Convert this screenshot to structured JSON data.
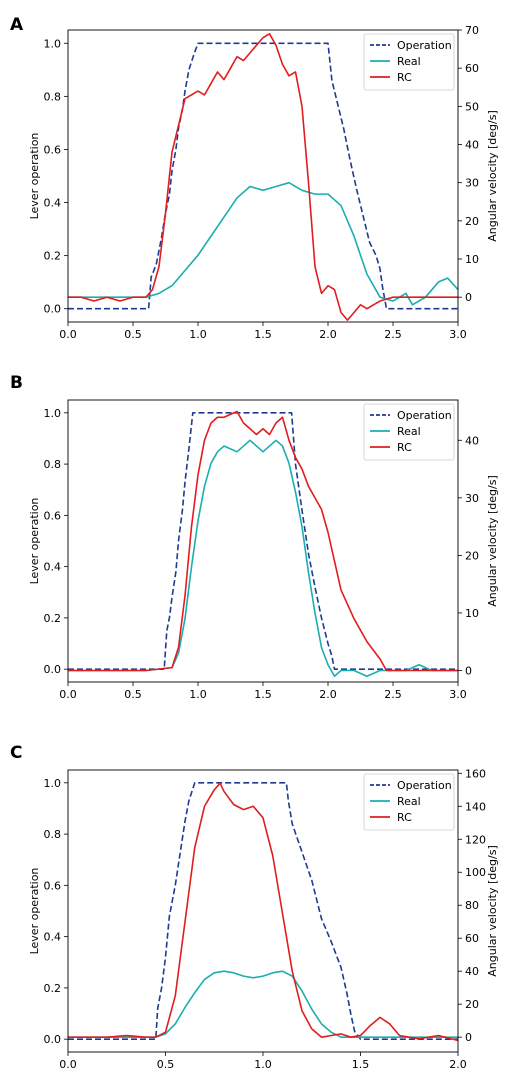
{
  "colors": {
    "operation": "#1f3a93",
    "real": "#1aaeb0",
    "rc": "#e11d1d"
  },
  "chart_data": [
    {
      "type": "line",
      "panel": "A",
      "xlabel": "",
      "ylabel": "Lever operation",
      "y2label": "Angular velocity [deg/s]",
      "xlim": [
        0,
        3
      ],
      "ylim": [
        -0.05,
        1.05
      ],
      "y2lim": [
        -6.5,
        70
      ],
      "xticks": [
        "0.0",
        "0.5",
        "1.0",
        "1.5",
        "2.0",
        "2.5",
        "3.0"
      ],
      "yticks": [
        "0.0",
        "0.2",
        "0.4",
        "0.6",
        "0.8",
        "1.0"
      ],
      "y2ticks": [
        "0",
        "10",
        "20",
        "30",
        "40",
        "50",
        "60",
        "70"
      ],
      "legend": {
        "position": "top-right",
        "entries": [
          "Operation",
          "Real",
          "RC"
        ]
      },
      "series": [
        {
          "name": "Operation",
          "axis": "left",
          "style": "dashed",
          "x": [
            0,
            0.62,
            0.64,
            0.65,
            0.68,
            0.7,
            0.72,
            0.75,
            0.78,
            0.8,
            0.83,
            0.85,
            0.88,
            0.9,
            0.93,
            0.97,
            1.0,
            2.0,
            2.03,
            2.08,
            2.12,
            2.17,
            2.22,
            2.27,
            2.32,
            2.37,
            2.4,
            2.42,
            2.45,
            3.0
          ],
          "y": [
            0,
            0,
            0.12,
            0.13,
            0.17,
            0.22,
            0.27,
            0.36,
            0.43,
            0.52,
            0.6,
            0.68,
            0.75,
            0.82,
            0.9,
            0.96,
            1.0,
            1.0,
            0.86,
            0.76,
            0.68,
            0.56,
            0.45,
            0.35,
            0.25,
            0.2,
            0.15,
            0.08,
            0,
            0
          ]
        },
        {
          "name": "Real",
          "axis": "right",
          "x": [
            0,
            0.3,
            0.6,
            0.7,
            0.8,
            0.9,
            1.0,
            1.1,
            1.2,
            1.3,
            1.4,
            1.5,
            1.6,
            1.7,
            1.8,
            1.9,
            2.0,
            2.1,
            2.2,
            2.3,
            2.4,
            2.5,
            2.6,
            2.65,
            2.75,
            2.85,
            2.92,
            3.0
          ],
          "y": [
            0,
            0,
            0,
            1,
            3,
            7,
            11,
            16,
            21,
            26,
            29,
            28,
            29,
            30,
            28,
            27,
            27,
            24,
            16,
            6,
            0,
            -1,
            1,
            -2,
            0,
            4,
            5,
            2
          ]
        },
        {
          "name": "RC",
          "axis": "right",
          "x": [
            0,
            0.1,
            0.2,
            0.3,
            0.4,
            0.5,
            0.6,
            0.65,
            0.7,
            0.75,
            0.8,
            0.85,
            0.9,
            1.0,
            1.05,
            1.1,
            1.15,
            1.2,
            1.25,
            1.3,
            1.35,
            1.4,
            1.45,
            1.5,
            1.55,
            1.6,
            1.65,
            1.7,
            1.75,
            1.8,
            1.85,
            1.9,
            1.95,
            2.0,
            2.05,
            2.1,
            2.15,
            2.2,
            2.25,
            2.3,
            2.35,
            2.4,
            2.5,
            2.6,
            2.8,
            3.0
          ],
          "y": [
            0,
            0,
            -1,
            0,
            -1,
            0,
            0,
            2,
            8,
            22,
            38,
            45,
            52,
            54,
            53,
            56,
            59,
            57,
            60,
            63,
            62,
            64,
            66,
            68,
            69,
            66,
            61,
            58,
            59,
            50,
            30,
            8,
            1,
            3,
            2,
            -4,
            -6,
            -4,
            -2,
            -3,
            -2,
            -1,
            0,
            0,
            0,
            0
          ]
        }
      ]
    },
    {
      "type": "line",
      "panel": "B",
      "xlabel": "",
      "ylabel": "Lever operation",
      "y2label": "Angular velocity [deg/s]",
      "xlim": [
        0,
        3
      ],
      "ylim": [
        -0.05,
        1.05
      ],
      "y2lim": [
        -2,
        47
      ],
      "xticks": [
        "0.0",
        "0.5",
        "1.0",
        "1.5",
        "2.0",
        "2.5",
        "3.0"
      ],
      "yticks": [
        "0.0",
        "0.2",
        "0.4",
        "0.6",
        "0.8",
        "1.0"
      ],
      "y2ticks": [
        "0",
        "10",
        "20",
        "30",
        "40"
      ],
      "legend": {
        "position": "top-right",
        "entries": [
          "Operation",
          "Real",
          "RC"
        ]
      },
      "series": [
        {
          "name": "Operation",
          "axis": "left",
          "style": "dashed",
          "x": [
            0,
            0.74,
            0.76,
            0.78,
            0.8,
            0.83,
            0.85,
            0.88,
            0.9,
            0.93,
            0.96,
            1.72,
            1.75,
            1.8,
            1.85,
            1.9,
            1.95,
            2.0,
            2.03,
            2.05,
            3.0
          ],
          "y": [
            0,
            0,
            0.15,
            0.2,
            0.28,
            0.38,
            0.5,
            0.62,
            0.73,
            0.86,
            1.0,
            1.0,
            0.8,
            0.62,
            0.45,
            0.32,
            0.2,
            0.1,
            0.05,
            0,
            0
          ]
        },
        {
          "name": "Real",
          "axis": "right",
          "x": [
            0,
            0.6,
            0.8,
            0.85,
            0.9,
            0.95,
            1.0,
            1.05,
            1.1,
            1.15,
            1.2,
            1.3,
            1.35,
            1.4,
            1.45,
            1.5,
            1.55,
            1.6,
            1.65,
            1.7,
            1.75,
            1.8,
            1.85,
            1.9,
            1.95,
            2.0,
            2.05,
            2.1,
            2.2,
            2.3,
            2.4,
            2.6,
            2.7,
            2.8,
            3.0
          ],
          "y": [
            0,
            0,
            0.5,
            3,
            9,
            18,
            26,
            32,
            36,
            38,
            39,
            38,
            39,
            40,
            39,
            38,
            39,
            40,
            39,
            36,
            31,
            25,
            17,
            10,
            4,
            1,
            -1,
            0,
            0,
            -1,
            0,
            0,
            1,
            0,
            0
          ]
        },
        {
          "name": "RC",
          "axis": "right",
          "x": [
            0,
            0.6,
            0.8,
            0.85,
            0.9,
            0.95,
            1.0,
            1.05,
            1.1,
            1.15,
            1.2,
            1.3,
            1.35,
            1.4,
            1.45,
            1.5,
            1.55,
            1.6,
            1.65,
            1.7,
            1.75,
            1.8,
            1.85,
            1.9,
            1.95,
            2.0,
            2.05,
            2.1,
            2.2,
            2.3,
            2.4,
            2.45,
            2.5,
            2.6,
            3.0
          ],
          "y": [
            0,
            0,
            0.5,
            4,
            13,
            25,
            34,
            40,
            43,
            44,
            44,
            45,
            43,
            42,
            41,
            42,
            41,
            43,
            44,
            40,
            37,
            35,
            32,
            30,
            28,
            24,
            19,
            14,
            9,
            5,
            2,
            0,
            0,
            0,
            0
          ]
        }
      ]
    },
    {
      "type": "line",
      "panel": "C",
      "xlabel": "",
      "ylabel": "Lever operation",
      "y2label": "Angular velocity [deg/s]",
      "xlim": [
        0,
        2
      ],
      "ylim": [
        -0.05,
        1.05
      ],
      "y2lim": [
        -9,
        162
      ],
      "xticks": [
        "0.0",
        "0.5",
        "1.0",
        "1.5",
        "2.0"
      ],
      "yticks": [
        "0.0",
        "0.2",
        "0.4",
        "0.6",
        "0.8",
        "1.0"
      ],
      "y2ticks": [
        "0",
        "20",
        "40",
        "60",
        "80",
        "100",
        "120",
        "140",
        "160"
      ],
      "legend": {
        "position": "top-right",
        "entries": [
          "Operation",
          "Real",
          "RC"
        ]
      },
      "series": [
        {
          "name": "Operation",
          "axis": "left",
          "style": "dashed",
          "x": [
            0,
            0.45,
            0.46,
            0.48,
            0.5,
            0.52,
            0.55,
            0.58,
            0.6,
            0.62,
            0.65,
            1.12,
            1.13,
            1.15,
            1.2,
            1.25,
            1.3,
            1.35,
            1.4,
            1.43,
            1.45,
            1.47,
            1.5,
            2.0
          ],
          "y": [
            0,
            0,
            0.12,
            0.2,
            0.32,
            0.48,
            0.6,
            0.75,
            0.85,
            0.93,
            1.0,
            1.0,
            0.93,
            0.84,
            0.73,
            0.62,
            0.47,
            0.38,
            0.28,
            0.18,
            0.1,
            0.03,
            0,
            0
          ]
        },
        {
          "name": "Real",
          "axis": "right",
          "x": [
            0,
            0.4,
            0.45,
            0.5,
            0.55,
            0.6,
            0.65,
            0.7,
            0.75,
            0.8,
            0.85,
            0.9,
            0.95,
            1.0,
            1.05,
            1.1,
            1.15,
            1.2,
            1.25,
            1.3,
            1.35,
            1.4,
            1.5,
            2.0
          ],
          "y": [
            0,
            0,
            0,
            2,
            8,
            18,
            27,
            35,
            39,
            40,
            39,
            37,
            36,
            37,
            39,
            40,
            37,
            28,
            17,
            8,
            3,
            0,
            0,
            0
          ]
        },
        {
          "name": "RC",
          "axis": "right",
          "x": [
            0,
            0.1,
            0.2,
            0.3,
            0.4,
            0.45,
            0.5,
            0.55,
            0.6,
            0.65,
            0.7,
            0.75,
            0.78,
            0.8,
            0.85,
            0.9,
            0.95,
            1.0,
            1.05,
            1.1,
            1.15,
            1.2,
            1.25,
            1.3,
            1.4,
            1.45,
            1.5,
            1.55,
            1.6,
            1.65,
            1.7,
            1.8,
            1.9,
            2.0
          ],
          "y": [
            0,
            0,
            0,
            1,
            0,
            0,
            3,
            25,
            70,
            115,
            140,
            150,
            154,
            149,
            141,
            138,
            140,
            133,
            110,
            75,
            40,
            16,
            5,
            0,
            2,
            0,
            1,
            7,
            12,
            8,
            1,
            -1,
            1,
            -2
          ]
        }
      ]
    }
  ]
}
